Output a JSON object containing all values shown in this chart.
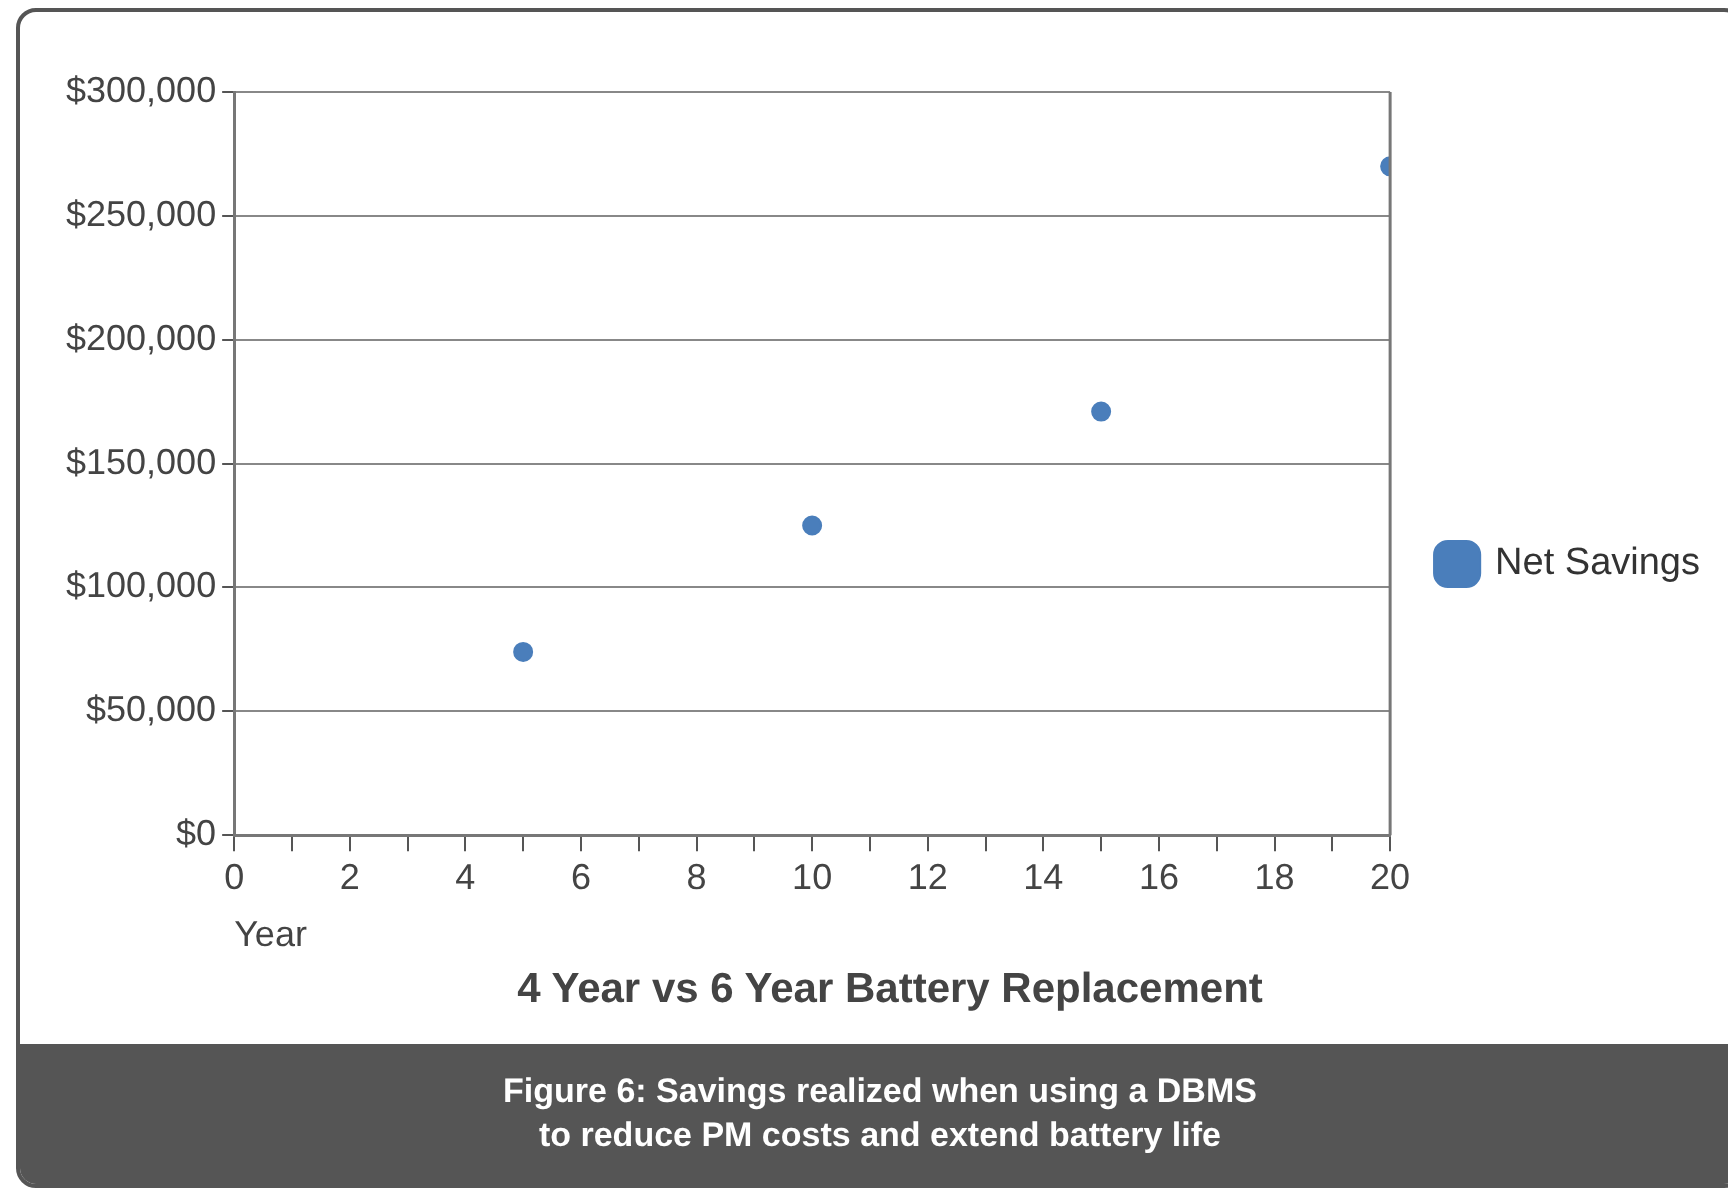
{
  "chart_data": {
    "type": "scatter",
    "title": "4 Year vs 6 Year Battery Replacement",
    "xlabel": "Year",
    "x": [
      5,
      10,
      15,
      20
    ],
    "series": [
      {
        "name": "Net Savings",
        "color": "#4a7ebb",
        "values": [
          74000,
          125000,
          171000,
          270000
        ]
      }
    ],
    "xlim": [
      0,
      20
    ],
    "xticks": [
      0,
      {
        "value": 1,
        "label": null
      },
      2,
      {
        "value": 3,
        "label": null
      },
      4,
      {
        "value": 5,
        "label": null
      },
      6,
      {
        "value": 7,
        "label": null
      },
      8,
      {
        "value": 9,
        "label": null
      },
      10,
      {
        "value": 11,
        "label": null
      },
      12,
      {
        "value": 13,
        "label": null
      },
      14,
      {
        "value": 15,
        "label": null
      },
      16,
      {
        "value": 17,
        "label": null
      },
      18,
      {
        "value": 19,
        "label": null
      },
      20
    ],
    "ylim": [
      0,
      300000
    ],
    "yticks": [
      {
        "value": 0,
        "label": "$0"
      },
      {
        "value": 50000,
        "label": "$50,000"
      },
      {
        "value": 100000,
        "label": "$100,000"
      },
      {
        "value": 150000,
        "label": "$150,000"
      },
      {
        "value": 200000,
        "label": "$200,000"
      },
      {
        "value": 250000,
        "label": "$250,000"
      },
      {
        "value": 300000,
        "label": "$300,000"
      }
    ],
    "grid": "y",
    "legend": "right",
    "marker": "circle",
    "annotations": [
      "Figure 6: Savings realized when using a DBMS\nto reduce PM costs and extend battery life"
    ]
  }
}
